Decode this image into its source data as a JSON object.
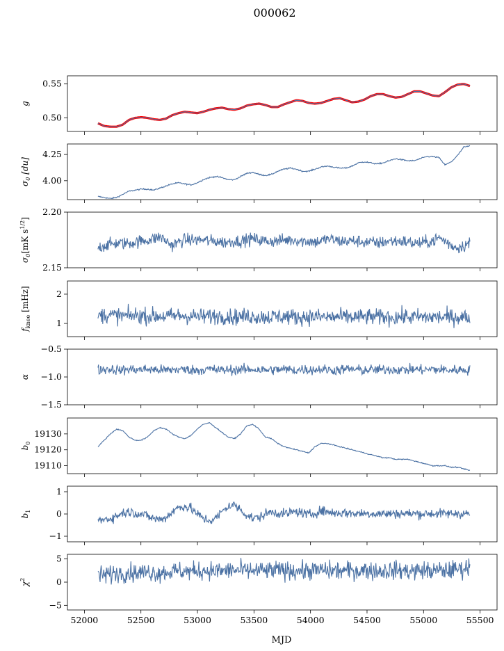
{
  "title": "000062",
  "xlabel": "MJD",
  "chart_data": {
    "type": "line",
    "x_range": [
      51850,
      55650
    ],
    "x_ticks": [
      52000,
      52500,
      53000,
      53500,
      54000,
      54500,
      55000,
      55500
    ],
    "x_start": 52120,
    "x_end": 55410,
    "line_color": "#4c72a4",
    "highlight_color": "#ff0000",
    "panels": [
      {
        "ylabel": "g",
        "ylim": [
          0.48,
          0.562
        ],
        "yticks": [
          0.5,
          0.55
        ],
        "ytick_labels": [
          "0.50",
          "0.55"
        ],
        "values": [
          0.492,
          0.488,
          0.487,
          0.487,
          0.49,
          0.497,
          0.5,
          0.501,
          0.5,
          0.498,
          0.497,
          0.499,
          0.504,
          0.507,
          0.509,
          0.508,
          0.507,
          0.509,
          0.512,
          0.514,
          0.515,
          0.513,
          0.512,
          0.514,
          0.518,
          0.52,
          0.521,
          0.519,
          0.516,
          0.516,
          0.52,
          0.523,
          0.526,
          0.525,
          0.522,
          0.521,
          0.522,
          0.525,
          0.528,
          0.529,
          0.526,
          0.523,
          0.524,
          0.527,
          0.532,
          0.535,
          0.535,
          0.532,
          0.53,
          0.531,
          0.535,
          0.539,
          0.539,
          0.536,
          0.533,
          0.532,
          0.538,
          0.545,
          0.549,
          0.55,
          0.547
        ],
        "highlight": true
      },
      {
        "ylabel": "σ0 [du]",
        "ylim": [
          3.82,
          4.35
        ],
        "yticks": [
          4.0,
          4.25
        ],
        "ytick_labels": [
          "4.00",
          "4.25"
        ],
        "values": [
          3.85,
          3.84,
          3.83,
          3.84,
          3.87,
          3.9,
          3.91,
          3.92,
          3.92,
          3.91,
          3.93,
          3.95,
          3.97,
          3.98,
          3.97,
          3.96,
          3.98,
          4.01,
          4.03,
          4.04,
          4.03,
          4.01,
          4.01,
          4.04,
          4.07,
          4.08,
          4.06,
          4.05,
          4.06,
          4.09,
          4.11,
          4.12,
          4.11,
          4.09,
          4.09,
          4.11,
          4.13,
          4.14,
          4.13,
          4.12,
          4.12,
          4.14,
          4.17,
          4.18,
          4.17,
          4.16,
          4.17,
          4.19,
          4.21,
          4.2,
          4.19,
          4.19,
          4.21,
          4.23,
          4.23,
          4.22,
          4.15,
          4.18,
          4.24,
          4.32,
          4.33
        ],
        "noise": 0.003
      },
      {
        "ylabel": "σ0[mK s1/2]",
        "ylim": [
          2.15,
          2.2
        ],
        "yticks": [
          2.15,
          2.2
        ],
        "ytick_labels": [
          "2.15",
          "2.20"
        ],
        "values": [
          2.168,
          2.17,
          2.171,
          2.172,
          2.172,
          2.172,
          2.173,
          2.174,
          2.175,
          2.176,
          2.178,
          2.174,
          2.17,
          2.173,
          2.175,
          2.175,
          2.175,
          2.175,
          2.174,
          2.174,
          2.173,
          2.173,
          2.174,
          2.174,
          2.175,
          2.176,
          2.175,
          2.174,
          2.174,
          2.174,
          2.175,
          2.175,
          2.175,
          2.174,
          2.174,
          2.173,
          2.174,
          2.176,
          2.175,
          2.174,
          2.174,
          2.174,
          2.174,
          2.173,
          2.173,
          2.172,
          2.173,
          2.174,
          2.174,
          2.174,
          2.173,
          2.172,
          2.172,
          2.173,
          2.174,
          2.177,
          2.174,
          2.17,
          2.168,
          2.17,
          2.172
        ],
        "noise": 0.0028
      },
      {
        "ylabel": "fknee [mHz]",
        "ylim": [
          0.55,
          2.45
        ],
        "yticks": [
          1,
          2
        ],
        "ytick_labels": [
          "1",
          "2"
        ],
        "values": [
          1.25,
          1.3,
          1.28,
          1.27,
          1.25,
          1.26,
          1.28,
          1.27,
          1.25,
          1.25,
          1.26,
          1.24,
          1.25,
          1.27,
          1.26,
          1.25,
          1.24,
          1.23,
          1.24,
          1.25,
          1.26,
          1.24,
          1.22,
          1.23,
          1.24,
          1.25,
          1.23,
          1.22,
          1.23,
          1.24,
          1.24,
          1.23,
          1.22,
          1.22,
          1.23,
          1.23,
          1.22,
          1.21,
          1.22,
          1.22,
          1.21,
          1.22,
          1.21,
          1.22,
          1.22,
          1.21,
          1.22,
          1.21,
          1.22,
          1.23,
          1.22,
          1.21,
          1.22,
          1.21,
          1.22,
          1.21,
          1.21,
          1.22,
          1.22,
          1.21,
          1.21
        ],
        "noise": 0.14
      },
      {
        "ylabel": "α",
        "ylim": [
          -1.5,
          -0.5
        ],
        "yticks": [
          -1.5,
          -1.0,
          -0.5
        ],
        "ytick_labels": [
          "−1.5",
          "−1.0",
          "−0.5"
        ],
        "values": [
          -0.87,
          -0.86,
          -0.86,
          -0.87,
          -0.88,
          -0.86,
          -0.87,
          -0.87,
          -0.86,
          -0.87,
          -0.87,
          -0.88,
          -0.87,
          -0.86,
          -0.87,
          -0.87,
          -0.88,
          -0.87,
          -0.86,
          -0.87,
          -0.88,
          -0.87,
          -0.87,
          -0.87,
          -0.87,
          -0.86,
          -0.87,
          -0.88,
          -0.87,
          -0.87,
          -0.86,
          -0.87,
          -0.88,
          -0.86,
          -0.87,
          -0.87,
          -0.86,
          -0.87,
          -0.88,
          -0.87,
          -0.86,
          -0.86,
          -0.87,
          -0.88,
          -0.87,
          -0.87,
          -0.87,
          -0.86,
          -0.87,
          -0.87,
          -0.87,
          -0.86,
          -0.87,
          -0.87,
          -0.86,
          -0.87,
          -0.87,
          -0.88,
          -0.87,
          -0.87,
          -0.88
        ],
        "noise": 0.045
      },
      {
        "ylabel": "b0",
        "ylim": [
          19105,
          19140
        ],
        "yticks": [
          19110,
          19120,
          19130
        ],
        "ytick_labels": [
          "19110",
          "19120",
          "19130"
        ],
        "values": [
          19122,
          19126,
          19130,
          19133,
          19132,
          19128,
          19126,
          19126,
          19128,
          19132,
          19134,
          19133,
          19130,
          19128,
          19127,
          19129,
          19133,
          19136,
          19137,
          19134,
          19131,
          19128,
          19127,
          19130,
          19135,
          19136,
          19133,
          19128,
          19127,
          19124,
          19122,
          19121,
          19120,
          19119,
          19118,
          19122,
          19124,
          19124,
          19123,
          19122,
          19121,
          19120,
          19119,
          19118,
          19117,
          19116,
          19115,
          19115,
          19114,
          19114,
          19114,
          19113,
          19112,
          19111,
          19110,
          19110,
          19110,
          19109,
          19109,
          19108,
          19107
        ],
        "noise": 0.15
      },
      {
        "ylabel": "b1",
        "ylim": [
          -1.25,
          1.25
        ],
        "yticks": [
          -1,
          0,
          1
        ],
        "ytick_labels": [
          "−1",
          "0",
          "1"
        ],
        "values": [
          -0.3,
          -0.25,
          -0.2,
          -0.1,
          0.05,
          0.1,
          0.05,
          0.0,
          -0.1,
          -0.2,
          -0.25,
          -0.15,
          0.1,
          0.3,
          0.35,
          0.25,
          0.0,
          -0.2,
          -0.3,
          -0.2,
          0.1,
          0.35,
          0.4,
          0.2,
          -0.05,
          -0.2,
          -0.15,
          0.0,
          0.1,
          0.05,
          0.0,
          0.05,
          0.1,
          0.05,
          -0.05,
          0.05,
          0.15,
          0.1,
          0.05,
          0.05,
          0.05,
          0.03,
          0.02,
          0.03,
          0.02,
          0.01,
          0.02,
          0.01,
          0.02,
          0.02,
          0.01,
          0.02,
          0.01,
          0.02,
          0.02,
          0.02,
          0.01,
          0.02,
          0.02,
          0.02,
          0.01
        ],
        "noise": 0.11
      },
      {
        "ylabel": "χ2",
        "ylim": [
          -6,
          6
        ],
        "yticks": [
          -5,
          0,
          5
        ],
        "ytick_labels": [
          "−5",
          "0",
          "5"
        ],
        "values": [
          1.5,
          1.5,
          1.8,
          2.0,
          2.0,
          2.1,
          2.0,
          2.1,
          2.2,
          2.1,
          2.0,
          2.2,
          2.3,
          2.4,
          2.4,
          2.3,
          2.4,
          2.5,
          2.5,
          2.4,
          2.4,
          2.5,
          2.6,
          2.5,
          2.4,
          2.5,
          2.5,
          2.4,
          2.5,
          2.6,
          2.5,
          2.5,
          2.5,
          2.4,
          2.5,
          2.5,
          2.6,
          2.5,
          2.5,
          2.4,
          2.5,
          2.5,
          2.5,
          2.6,
          2.5,
          2.4,
          2.4,
          2.5,
          2.5,
          2.5,
          2.4,
          2.4,
          2.5,
          2.5,
          2.4,
          2.5,
          2.5,
          2.6,
          2.8,
          3.0,
          3.2
        ],
        "noise": 1.0
      }
    ]
  }
}
